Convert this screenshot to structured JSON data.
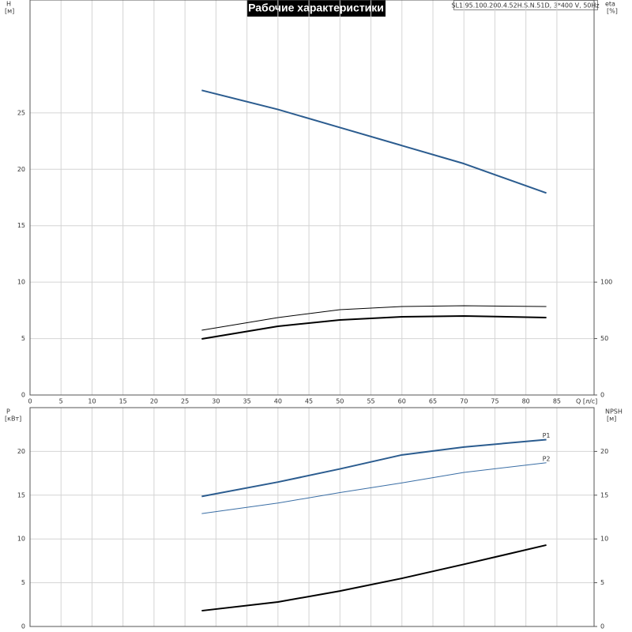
{
  "chart_data": [
    {
      "type": "line",
      "title": "Рабочие характеристики",
      "subtitle": "SL1.95.100.200.4.52H.S.N.51D, 3*400 V, 50Hz",
      "x_label": "Q [л/с]",
      "y_label": "H",
      "y_unit": "[м]",
      "y2_label": "eta",
      "y2_unit": "[%]",
      "x": [
        27.7,
        40,
        50,
        60,
        70,
        83.3
      ],
      "xlim": [
        0,
        91
      ],
      "xticks": [
        0,
        5,
        10,
        15,
        20,
        25,
        30,
        35,
        40,
        45,
        50,
        55,
        60,
        65,
        70,
        75,
        80,
        85
      ],
      "ylim": [
        0,
        35
      ],
      "yticks": [
        0,
        5,
        10,
        15,
        20,
        25
      ],
      "y2lim": [
        0,
        350
      ],
      "y2ticks": [
        0,
        50,
        100
      ],
      "grid": true,
      "series": [
        {
          "color": "#2b5c8f",
          "weight": "bold",
          "values": [
            27.0,
            25.3,
            23.7,
            22.1,
            20.5,
            17.9
          ]
        },
        {
          "color": "#000000",
          "weight": "thin",
          "axis": "y2",
          "values": [
            57.4,
            68.6,
            75.6,
            78.4,
            79.1,
            78.4
          ]
        },
        {
          "color": "#000000",
          "weight": "bold",
          "axis": "y2",
          "values": [
            49.7,
            60.9,
            66.5,
            69.3,
            70.0,
            68.6
          ]
        }
      ]
    },
    {
      "type": "line",
      "y_label": "P",
      "y_unit": "[кВт]",
      "y2_label": "NPSH",
      "y2_unit": "[м]",
      "x": [
        27.7,
        40,
        50,
        60,
        70,
        83.3
      ],
      "xlim": [
        0,
        91
      ],
      "xticks": [
        0,
        5,
        10,
        15,
        20,
        25,
        30,
        35,
        40,
        45,
        50,
        55,
        60,
        65,
        70,
        75,
        80,
        85
      ],
      "ylim": [
        0,
        25
      ],
      "yticks": [
        0,
        5,
        10,
        15,
        20
      ],
      "y2lim": [
        0,
        25
      ],
      "y2ticks": [
        0,
        5,
        10,
        15,
        20
      ],
      "grid": true,
      "series": [
        {
          "name": "P1",
          "color": "#2b5c8f",
          "weight": "bold",
          "values": [
            14.86,
            16.5,
            18.0,
            19.6,
            20.5,
            21.35
          ]
        },
        {
          "name": "P2",
          "color": "#3a6ea5",
          "weight": "thin",
          "values": [
            12.9,
            14.1,
            15.3,
            16.4,
            17.6,
            18.7
          ]
        },
        {
          "color": "#000000",
          "weight": "bold",
          "axis": "y2",
          "values": [
            1.8,
            2.8,
            4.05,
            5.5,
            7.1,
            9.3
          ]
        }
      ]
    }
  ]
}
